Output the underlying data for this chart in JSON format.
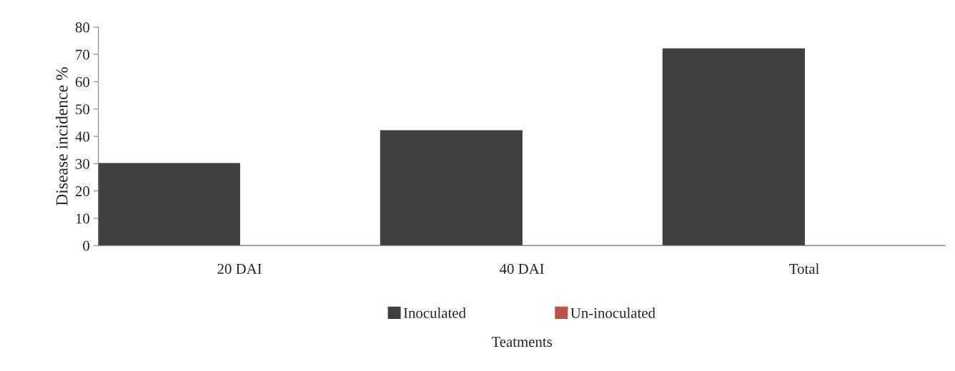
{
  "chart_data": {
    "type": "bar",
    "xlabel": "Teatments",
    "ylabel": "Disease incidence %",
    "categories": [
      "20 DAI",
      "40 DAI",
      "Total"
    ],
    "series": [
      {
        "name": "Inoculated",
        "color": "#404040",
        "values": [
          30,
          42,
          72
        ]
      },
      {
        "name": "Un-inoculated",
        "color": "#c0504d",
        "values": [
          0,
          0,
          0
        ]
      }
    ],
    "ylim": [
      0,
      80
    ],
    "yticks": [
      0,
      10,
      20,
      30,
      40,
      50,
      60,
      70,
      80
    ],
    "grid": false,
    "legend": "bottom"
  }
}
